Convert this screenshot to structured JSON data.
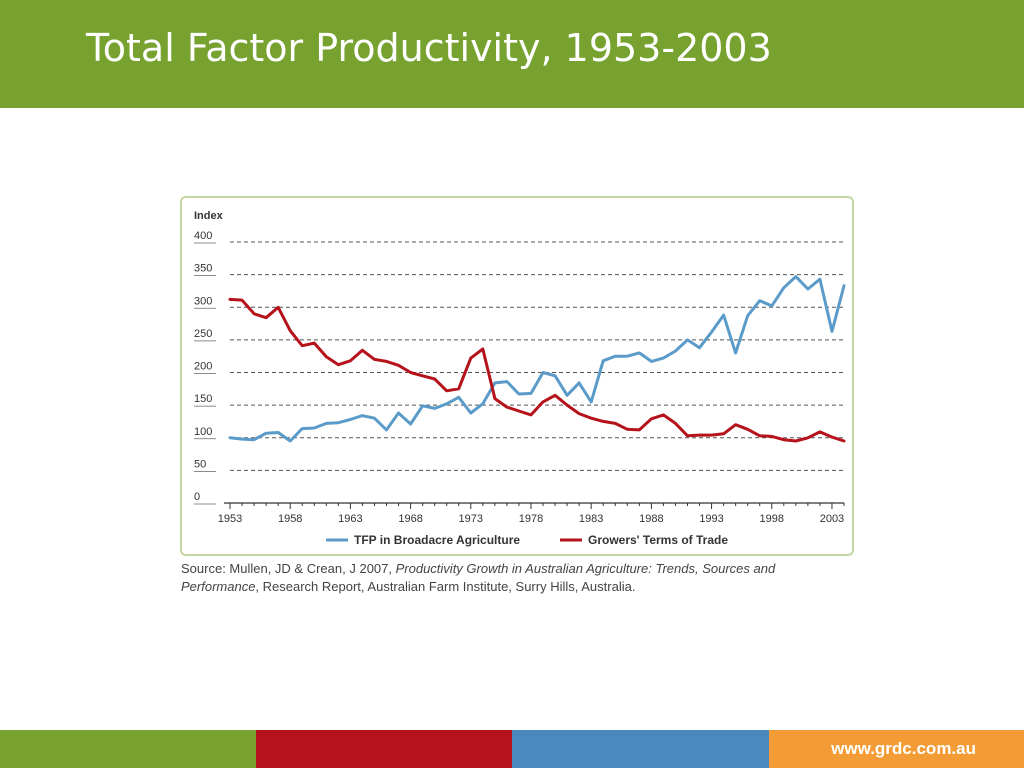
{
  "slide": {
    "title": "Total Factor Productivity, 1953-2003"
  },
  "source": {
    "prefix": "Source: Mullen, JD & Crean, J 2007, ",
    "title_italic": "Productivity Growth in Australian Agriculture: Trends, Sources and Performance",
    "suffix": ", Research Report, Australian Farm Institute, Surry Hills, Australia."
  },
  "footer": {
    "url": "www.grdc.com.au",
    "colors": [
      "#77a22f",
      "#b5121b",
      "#4a89c0",
      "#f39c35"
    ]
  },
  "chart_data": {
    "type": "line",
    "ylabel": "Index",
    "ylim": [
      0,
      400
    ],
    "yticks": [
      0,
      50,
      100,
      150,
      200,
      250,
      300,
      350,
      400
    ],
    "xlim": [
      1953,
      2004
    ],
    "xticks": [
      1953,
      1958,
      1963,
      1968,
      1973,
      1978,
      1983,
      1988,
      1993,
      1998,
      2003
    ],
    "grid": "horizontal dashed",
    "legend": "bottom",
    "x": [
      1953,
      1954,
      1955,
      1956,
      1957,
      1958,
      1959,
      1960,
      1961,
      1962,
      1963,
      1964,
      1965,
      1966,
      1967,
      1968,
      1969,
      1970,
      1971,
      1972,
      1973,
      1974,
      1975,
      1976,
      1977,
      1978,
      1979,
      1980,
      1981,
      1982,
      1983,
      1984,
      1985,
      1986,
      1987,
      1988,
      1989,
      1990,
      1991,
      1992,
      1993,
      1994,
      1995,
      1996,
      1997,
      1998,
      1999,
      2000,
      2001,
      2002,
      2003,
      2004
    ],
    "series": [
      {
        "name": "TFP in Broadacre Agriculture",
        "color": "#5b9bc9",
        "values": [
          100,
          98,
          97,
          107,
          108,
          95,
          114,
          115,
          122,
          123,
          128,
          134,
          130,
          112,
          138,
          121,
          149,
          145,
          152,
          162,
          138,
          152,
          184,
          186,
          167,
          168,
          200,
          195,
          165,
          184,
          155,
          218,
          225,
          225,
          230,
          217,
          222,
          233,
          250,
          238,
          262,
          288,
          230,
          287,
          310,
          302,
          330,
          347,
          328,
          343,
          263,
          333
        ]
      },
      {
        "name": "Growers' Terms of Trade",
        "color": "#b5121b",
        "values": [
          312,
          311,
          290,
          284,
          300,
          264,
          241,
          245,
          224,
          212,
          218,
          234,
          220,
          217,
          211,
          200,
          195,
          190,
          172,
          175,
          222,
          236,
          160,
          147,
          141,
          135,
          155,
          165,
          150,
          137,
          130,
          125,
          122,
          113,
          112,
          129,
          135,
          122,
          103,
          104,
          104,
          106,
          120,
          113,
          103,
          102,
          97,
          95,
          100,
          109,
          101,
          95
        ]
      }
    ]
  }
}
